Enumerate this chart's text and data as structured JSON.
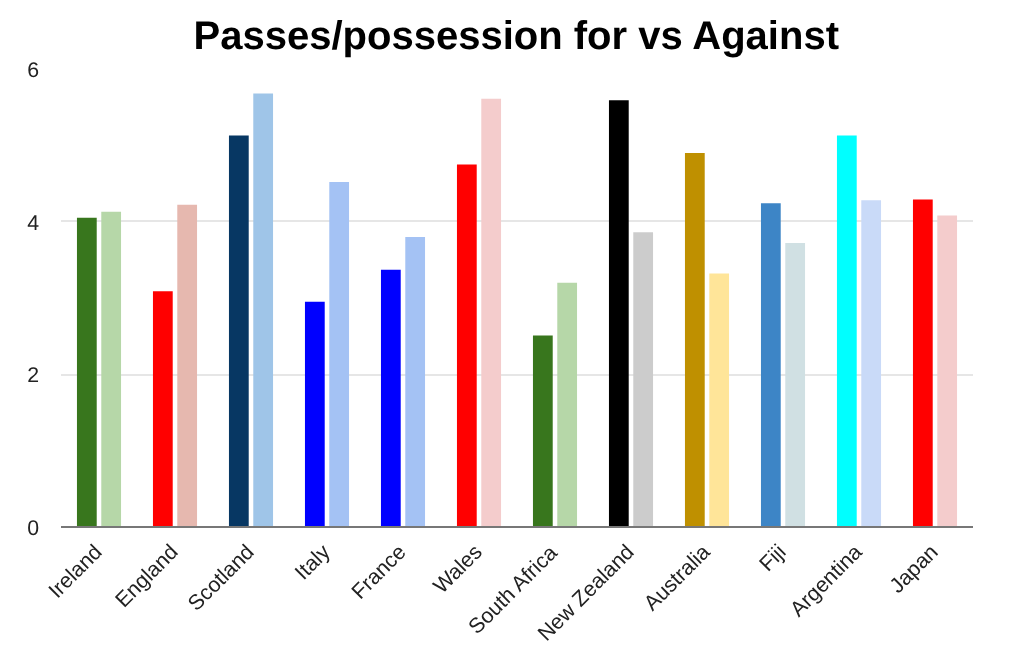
{
  "chart_data": {
    "type": "bar",
    "title": "Passes/possession for vs Against",
    "categories": [
      "Ireland",
      "England",
      "Scotland",
      "Italy",
      "France",
      "Wales",
      "South Africa",
      "New Zealand",
      "Australia",
      "Fiji",
      "Argentina",
      "Japan"
    ],
    "series": [
      {
        "colors": [
          "#38761d",
          "#ff0000",
          "#073763",
          "#0000ff",
          "#0000ff",
          "#ff0000",
          "#38761d",
          "#000000",
          "#bf9000",
          "#3d85c6",
          "#00ffff",
          "#ff0000"
        ],
        "values": [
          4.05,
          3.09,
          5.13,
          2.95,
          3.37,
          4.75,
          2.51,
          5.59,
          4.9,
          4.24,
          5.13,
          4.29
        ]
      },
      {
        "colors": [
          "#b6d7a8",
          "#e6b8af",
          "#9fc5e8",
          "#a4c2f4",
          "#a4c2f4",
          "#f4cccc",
          "#b6d7a8",
          "#cccccc",
          "#ffe599",
          "#d0e0e3",
          "#c9daf8",
          "#f4cccc"
        ],
        "values": [
          4.13,
          4.22,
          5.68,
          4.52,
          3.8,
          5.61,
          3.2,
          3.86,
          3.32,
          3.72,
          4.28,
          4.08
        ]
      }
    ],
    "ylim": [
      0,
      6
    ],
    "yticks": [
      0,
      2,
      4,
      6
    ],
    "grid": "y"
  }
}
